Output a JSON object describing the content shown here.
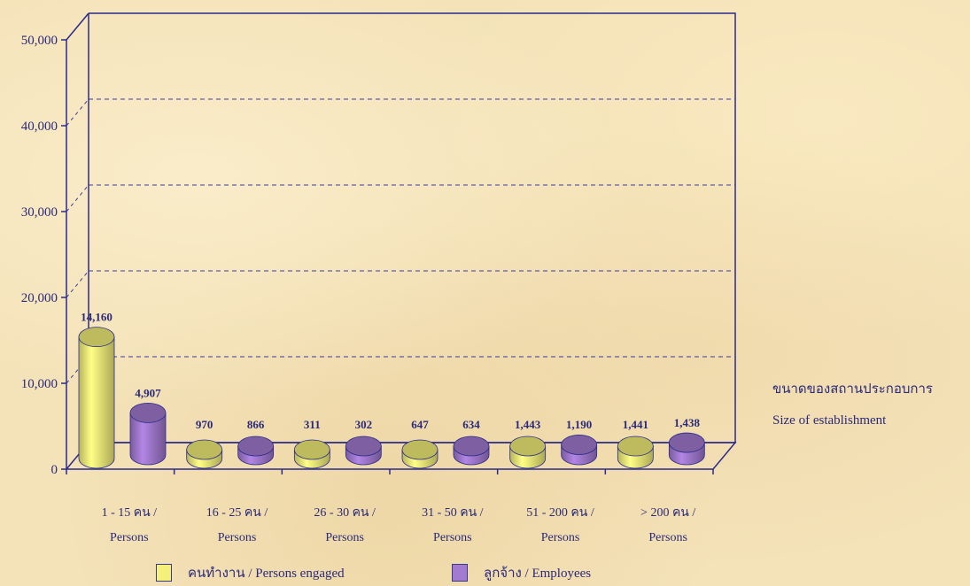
{
  "chart_data": {
    "type": "bar",
    "categories": [
      [
        "1 - 15 คน /",
        "Persons"
      ],
      [
        "16 - 25 คน /",
        "Persons"
      ],
      [
        "26 - 30 คน /",
        "Persons"
      ],
      [
        "31 - 50 คน /",
        "Persons"
      ],
      [
        "51 - 200 คน /",
        "Persons"
      ],
      [
        "> 200 คน /",
        "Persons"
      ]
    ],
    "series": [
      {
        "name": "คนทำงาน / Persons engaged",
        "values": [
          14160,
          970,
          311,
          647,
          1443,
          1441
        ],
        "color": "#f4f07a"
      },
      {
        "name": "ลูกจ้าง /  Employees",
        "values": [
          4907,
          866,
          302,
          634,
          1190,
          1438
        ],
        "color": "#a27ad0"
      }
    ],
    "data_labels": [
      [
        "14,160",
        "970",
        "311",
        "647",
        "1,443",
        "1,441"
      ],
      [
        "4,907",
        "866",
        "302",
        "634",
        "1,190",
        "1,438"
      ]
    ],
    "yticks": [
      0,
      10000,
      20000,
      30000,
      40000,
      50000
    ],
    "ytick_labels": [
      "0",
      "10,000",
      "20,000",
      "30,000",
      "40,000",
      "50,000"
    ],
    "ylim": [
      0,
      50000
    ],
    "xlabel_th": "ขนาดของสถานประกอบการ",
    "xlabel_en": "Size of establishment",
    "grid": "dashed horizontal",
    "legend_position": "bottom",
    "style": "3d-cylinder"
  },
  "legend": {
    "persons_engaged": "คนทำงาน / Persons engaged",
    "employees": "ลูกจ้าง /  Employees"
  },
  "xaxis_title": {
    "th": "ขนาดของสถานประกอบการ",
    "en": "Size of establishment"
  },
  "colors": {
    "series1": "#f4f07a",
    "series2": "#a27ad0",
    "axis": "#2a2a8a",
    "grid": "#3a3aa0"
  }
}
